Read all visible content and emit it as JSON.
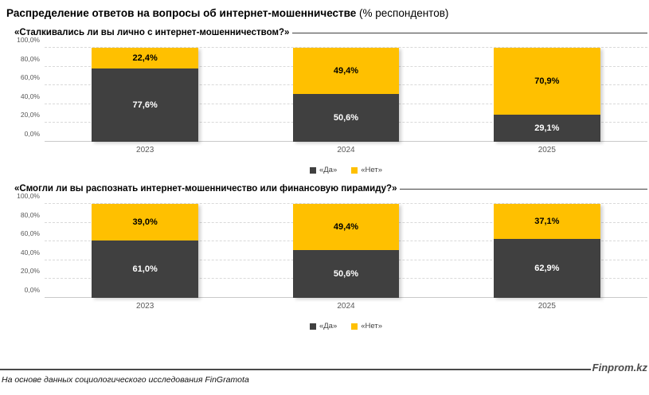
{
  "page": {
    "title_bold": "Распределение ответов на вопросы об интернет-мошенничестве",
    "title_regular": " (% респондентов)",
    "footer_note": "На основе данных социологического исследования FinGramota",
    "brand": "Finprom.kz"
  },
  "colors": {
    "yes": "#404040",
    "no": "#FFC000",
    "grid": "#d9d9d9",
    "axis_text": "#595959"
  },
  "legend": [
    {
      "label": "«Да»",
      "color": "#404040"
    },
    {
      "label": "«Нет»",
      "color": "#FFC000"
    }
  ],
  "chart_data": [
    {
      "type": "bar",
      "stacked": true,
      "title": "«Сталкивались ли вы лично с интернет-мошенничеством?»",
      "categories": [
        "2023",
        "2024",
        "2025"
      ],
      "series": [
        {
          "name": "«Да»",
          "values": [
            77.6,
            50.6,
            29.1
          ],
          "labels": [
            "77,6%",
            "50,6%",
            "29,1%"
          ],
          "color": "#404040",
          "label_color": "#ffffff"
        },
        {
          "name": "«Нет»",
          "values": [
            22.4,
            49.4,
            70.9
          ],
          "labels": [
            "22,4%",
            "49,4%",
            "70,9%"
          ],
          "color": "#FFC000",
          "label_color": "#000000"
        }
      ],
      "ylim": [
        0,
        100
      ],
      "yticks": [
        {
          "label": "0,0%",
          "value": 0
        },
        {
          "label": "20,0%",
          "value": 20
        },
        {
          "label": "40,0%",
          "value": 40
        },
        {
          "label": "60,0%",
          "value": 60
        },
        {
          "label": "80,0%",
          "value": 80
        },
        {
          "label": "100,0%",
          "value": 100
        }
      ],
      "grid": true,
      "legend_position": "bottom"
    },
    {
      "type": "bar",
      "stacked": true,
      "title": "«Смогли ли вы распознать интернет-мошенничество или финансовую пирамиду?»",
      "categories": [
        "2023",
        "2024",
        "2025"
      ],
      "series": [
        {
          "name": "«Да»",
          "values": [
            61.0,
            50.6,
            62.9
          ],
          "labels": [
            "61,0%",
            "50,6%",
            "62,9%"
          ],
          "color": "#404040",
          "label_color": "#ffffff"
        },
        {
          "name": "«Нет»",
          "values": [
            39.0,
            49.4,
            37.1
          ],
          "labels": [
            "39,0%",
            "49,4%",
            "37,1%"
          ],
          "color": "#FFC000",
          "label_color": "#000000"
        }
      ],
      "ylim": [
        0,
        100
      ],
      "yticks": [
        {
          "label": "0,0%",
          "value": 0
        },
        {
          "label": "20,0%",
          "value": 20
        },
        {
          "label": "40,0%",
          "value": 40
        },
        {
          "label": "60,0%",
          "value": 60
        },
        {
          "label": "80,0%",
          "value": 80
        },
        {
          "label": "100,0%",
          "value": 100
        }
      ],
      "grid": true,
      "legend_position": "bottom"
    }
  ]
}
